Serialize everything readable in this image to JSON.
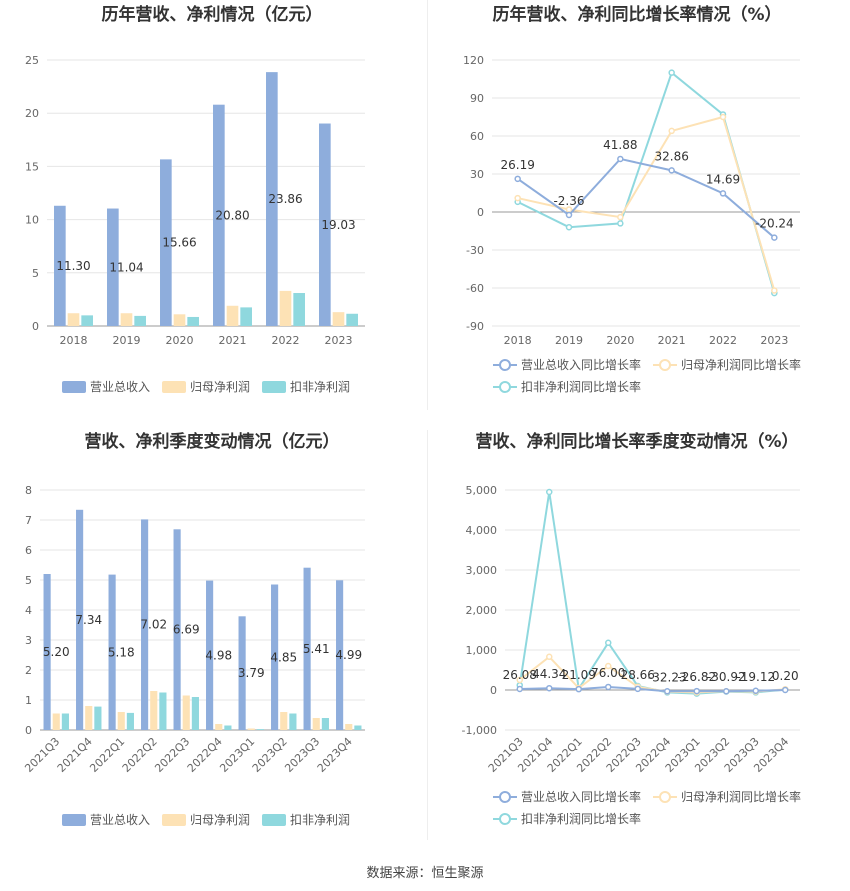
{
  "source": "数据来源：恒生聚源",
  "chart_data": [
    {
      "type": "bar",
      "title": "历年营收、净利情况（亿元）",
      "categories": [
        "2018",
        "2019",
        "2020",
        "2021",
        "2022",
        "2023"
      ],
      "ylim": [
        0,
        25
      ],
      "yticks": [
        0,
        5,
        10,
        15,
        20,
        25
      ],
      "series": [
        {
          "name": "营业总收入",
          "color": "#8eaddc",
          "values": [
            11.3,
            11.04,
            15.66,
            20.8,
            23.86,
            19.03
          ],
          "labels": [
            "11.30",
            "11.04",
            "15.66",
            "20.80",
            "23.86",
            "19.03"
          ]
        },
        {
          "name": "归母净利润",
          "color": "#fde2b5",
          "values": [
            1.2,
            1.2,
            1.1,
            1.9,
            3.3,
            1.3
          ]
        },
        {
          "name": "扣非净利润",
          "color": "#8fd8de",
          "values": [
            1.0,
            0.95,
            0.85,
            1.75,
            3.1,
            1.15
          ]
        }
      ],
      "legend": "bottom"
    },
    {
      "type": "line",
      "title": "历年营收、净利同比增长率情况（%）",
      "categories": [
        "2018",
        "2019",
        "2020",
        "2021",
        "2022",
        "2023"
      ],
      "ylim": [
        -90,
        120
      ],
      "yticks": [
        -90,
        -60,
        -30,
        0,
        30,
        60,
        90,
        120
      ],
      "series": [
        {
          "name": "营业总收入同比增长率",
          "color": "#8eaddc",
          "values": [
            26.19,
            -2.36,
            41.88,
            32.86,
            14.69,
            -20.24
          ],
          "labels": [
            "26.19",
            "-2.36",
            "41.88",
            "32.86",
            "14.69",
            "-20.24"
          ]
        },
        {
          "name": "归母净利润同比增长率",
          "color": "#fde2b5",
          "values": [
            11,
            2,
            -4,
            64,
            75,
            -62
          ]
        },
        {
          "name": "扣非净利润同比增长率",
          "color": "#8fd8de",
          "values": [
            8,
            -12,
            -9,
            110,
            77,
            -64
          ]
        }
      ],
      "legend": "bottom"
    },
    {
      "type": "bar",
      "title": "营收、净利季度变动情况（亿元）",
      "categories": [
        "2021Q3",
        "2021Q4",
        "2022Q1",
        "2022Q2",
        "2022Q3",
        "2022Q4",
        "2023Q1",
        "2023Q2",
        "2023Q3",
        "2023Q4"
      ],
      "ylim": [
        0,
        8
      ],
      "yticks": [
        0,
        1,
        2,
        3,
        4,
        5,
        6,
        7,
        8
      ],
      "series": [
        {
          "name": "营业总收入",
          "color": "#8eaddc",
          "values": [
            5.2,
            7.34,
            5.18,
            7.02,
            6.69,
            4.98,
            3.79,
            4.85,
            5.41,
            4.99
          ],
          "labels": [
            "5.20",
            "7.34",
            "5.18",
            "7.02",
            "6.69",
            "4.98",
            "3.79",
            "4.85",
            "5.41",
            "4.99"
          ]
        },
        {
          "name": "归母净利润",
          "color": "#fde2b5",
          "values": [
            0.55,
            0.8,
            0.6,
            1.3,
            1.15,
            0.2,
            0.05,
            0.6,
            0.4,
            0.2
          ]
        },
        {
          "name": "扣非净利润",
          "color": "#8fd8de",
          "values": [
            0.55,
            0.78,
            0.57,
            1.25,
            1.1,
            0.15,
            0.03,
            0.55,
            0.4,
            0.15
          ]
        }
      ],
      "legend": "bottom"
    },
    {
      "type": "line",
      "title": "营收、净利同比增长率季度变动情况（%）",
      "categories": [
        "2021Q3",
        "2021Q4",
        "2022Q1",
        "2022Q2",
        "2022Q3",
        "2022Q4",
        "2023Q1",
        "2023Q2",
        "2023Q3",
        "2023Q4"
      ],
      "ylim": [
        -1000,
        5000
      ],
      "yticks": [
        -1000,
        0,
        1000,
        2000,
        3000,
        4000,
        5000
      ],
      "ytick_labels": [
        "-1,000",
        "0",
        "1,000",
        "2,000",
        "3,000",
        "4,000",
        "5,000"
      ],
      "series": [
        {
          "name": "营业总收入同比增长率",
          "color": "#8eaddc",
          "values": [
            26.08,
            44.34,
            21.09,
            76.0,
            28.66,
            -32.23,
            -26.82,
            -30.92,
            -19.12,
            0.2
          ],
          "labels": [
            "26.08",
            "44.34",
            "21.09",
            "76.00",
            "28.66",
            "-32.23",
            "-26.82",
            "-30.92",
            "-19.12",
            "0.20"
          ]
        },
        {
          "name": "归母净利润同比增长率",
          "color": "#fde2b5",
          "values": [
            250,
            830,
            50,
            600,
            80,
            -40,
            -60,
            -30,
            -40,
            20
          ]
        },
        {
          "name": "扣非净利润同比增长率",
          "color": "#8fd8de",
          "values": [
            120,
            4950,
            30,
            1180,
            100,
            -60,
            -90,
            -40,
            -60,
            10
          ]
        }
      ],
      "legend": "bottom"
    }
  ]
}
